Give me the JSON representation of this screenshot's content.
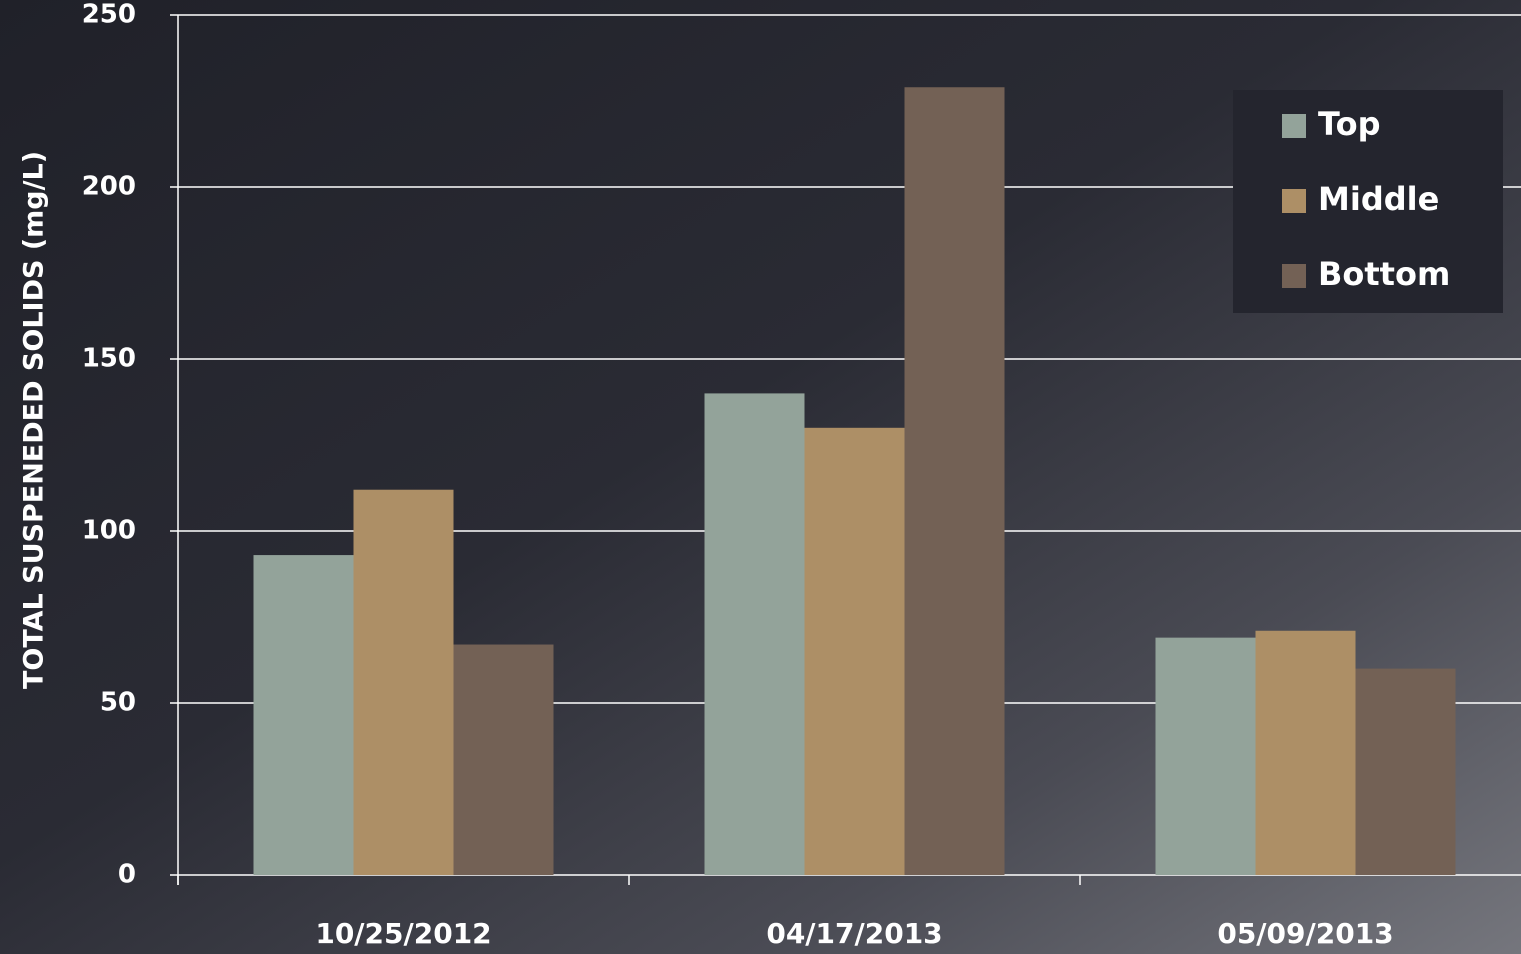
{
  "chart_data": {
    "type": "bar",
    "categories": [
      "10/25/2012",
      "04/17/2013",
      "05/09/2013"
    ],
    "series": [
      {
        "name": "Top",
        "color": "#93a39a",
        "values": [
          93,
          140,
          69
        ]
      },
      {
        "name": "Middle",
        "color": "#ad8f66",
        "values": [
          112,
          130,
          71
        ]
      },
      {
        "name": "Bottom",
        "color": "#736155",
        "values": [
          67,
          229,
          60
        ]
      }
    ],
    "y_label": "TOTAL SUSPENEDED SOLIDS (mg/L)",
    "ylim": [
      0,
      250
    ],
    "yticks": [
      0,
      50,
      100,
      150,
      200,
      250
    ],
    "grid": true,
    "legend": "upper right"
  }
}
